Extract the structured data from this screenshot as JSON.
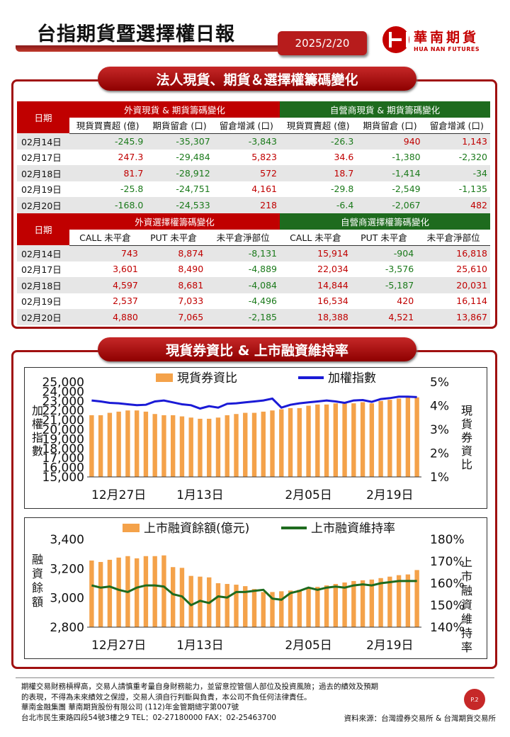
{
  "header": {
    "title": "台指期貨暨選擇權日報",
    "date": "2025/2/20",
    "logo_cn": "華南期貨",
    "logo_en": "HUA NAN FUTURES"
  },
  "section1": {
    "title": "法人現貨、期貨＆選擇權籌碼變化",
    "table1": {
      "date_header": "日期",
      "group_foreign": "外資現貨 & 期貨籌碼變化",
      "group_dealer": "自營商現貨 & 期貨籌碼變化",
      "columns": [
        "現貨買賣超 (億)",
        "期貨留倉 (口)",
        "留倉增減 (口)",
        "現貨買賣超 (億)",
        "期貨留倉 (口)",
        "留倉增減 (口)"
      ],
      "rows": [
        {
          "date": "02月14日",
          "values": [
            "-245.9",
            "-35,307",
            "-3,843",
            "-26.3",
            "940",
            "1,143"
          ]
        },
        {
          "date": "02月17日",
          "values": [
            "247.3",
            "-29,484",
            "5,823",
            "34.6",
            "-1,380",
            "-2,320"
          ]
        },
        {
          "date": "02月18日",
          "values": [
            "81.7",
            "-28,912",
            "572",
            "18.7",
            "-1,414",
            "-34"
          ]
        },
        {
          "date": "02月19日",
          "values": [
            "-25.8",
            "-24,751",
            "4,161",
            "-29.8",
            "-2,549",
            "-1,135"
          ]
        },
        {
          "date": "02月20日",
          "values": [
            "-168.0",
            "-24,533",
            "218",
            "-6.4",
            "-2,067",
            "482"
          ]
        }
      ]
    },
    "table2": {
      "date_header": "日期",
      "group_foreign": "外資選擇權籌碼變化",
      "group_dealer": "自營商選擇權籌碼變化",
      "columns": [
        "CALL 未平倉",
        "PUT  未平倉",
        "未平倉淨部位",
        "CALL 未平倉",
        "PUT  未平倉",
        "未平倉淨部位"
      ],
      "rows": [
        {
          "date": "02月14日",
          "values": [
            "743",
            "8,874",
            "-8,131",
            "15,914",
            "-904",
            "16,818"
          ]
        },
        {
          "date": "02月17日",
          "values": [
            "3,601",
            "8,490",
            "-4,889",
            "22,034",
            "-3,576",
            "25,610"
          ]
        },
        {
          "date": "02月18日",
          "values": [
            "4,597",
            "8,681",
            "-4,084",
            "14,844",
            "-5,187",
            "20,031"
          ]
        },
        {
          "date": "02月19日",
          "values": [
            "2,537",
            "7,033",
            "-4,496",
            "16,534",
            "420",
            "16,114"
          ]
        },
        {
          "date": "02月20日",
          "values": [
            "4,880",
            "7,065",
            "-2,185",
            "18,388",
            "4,521",
            "13,867"
          ]
        }
      ]
    }
  },
  "section2": {
    "title": "現貨券資比 & 上市融資維持率"
  },
  "chart_data": [
    {
      "type": "bar",
      "legend": [
        "現貨券資比",
        "加權指數"
      ],
      "ylabel": "加權指數",
      "y2label": "現貨券資比",
      "ylim": [
        15000,
        25000
      ],
      "y2lim": [
        1,
        5
      ],
      "yticks": [
        "15,000",
        "16,000",
        "17,000",
        "18,000",
        "19,000",
        "20,000",
        "21,000",
        "22,000",
        "23,000",
        "24,000",
        "25,000"
      ],
      "y2ticks": [
        "1%",
        "2%",
        "3%",
        "4%",
        "5%"
      ],
      "xticks": [
        "12月27日",
        "1月13日",
        "2月05日",
        "2月19日"
      ],
      "series": [
        {
          "name": "現貨券資比",
          "type": "bar",
          "color": "#f4a24a",
          "values": [
            3.6,
            3.6,
            3.7,
            3.75,
            3.8,
            3.8,
            3.75,
            3.65,
            3.6,
            3.6,
            3.55,
            3.5,
            3.45,
            3.45,
            3.5,
            3.6,
            3.65,
            3.7,
            3.7,
            3.75,
            3.8,
            3.85,
            3.9,
            3.9,
            4.0,
            4.05,
            4.05,
            4.1,
            4.1,
            4.1,
            4.15,
            4.1,
            4.2,
            4.25,
            4.3,
            4.35,
            4.35
          ]
        },
        {
          "name": "加權指數",
          "type": "line",
          "color": "#1a1ad6",
          "values": [
            23050,
            22950,
            22800,
            22750,
            22650,
            22550,
            22600,
            22950,
            23050,
            22850,
            22650,
            22550,
            22200,
            22450,
            22300,
            22700,
            22750,
            22850,
            22950,
            23050,
            23250,
            22300,
            22600,
            22750,
            22850,
            22950,
            23050,
            22950,
            22800,
            23050,
            23100,
            22900,
            23200,
            23300,
            23450,
            23450,
            23400
          ]
        }
      ]
    },
    {
      "type": "bar",
      "legend": [
        "上市融資餘額(億元)",
        "上市融資維持率"
      ],
      "ylabel": "融資餘額",
      "y2label": "上市融資維持率",
      "ylim": [
        2800,
        3400
      ],
      "y2lim": [
        140,
        180
      ],
      "yticks": [
        "2,800",
        "3,000",
        "3,200",
        "3,400"
      ],
      "y2ticks": [
        "140%",
        "150%",
        "160%",
        "170%",
        "180%"
      ],
      "xticks": [
        "12月27日",
        "1月13日",
        "2月05日",
        "2月19日"
      ],
      "series": [
        {
          "name": "上市融資餘額(億元)",
          "type": "bar",
          "color": "#f4a24a",
          "values": [
            3255,
            3245,
            3260,
            3275,
            3285,
            3270,
            3285,
            3285,
            3290,
            3210,
            3205,
            3150,
            3145,
            3140,
            3100,
            3095,
            3090,
            3080,
            3060,
            3040,
            3040,
            3045,
            3050,
            3055,
            3065,
            3075,
            3085,
            3095,
            3105,
            3115,
            3120,
            3125,
            3135,
            3145,
            3155,
            3160,
            3190
          ]
        },
        {
          "name": "上市融資維持率",
          "type": "line",
          "color": "#1e6b1e",
          "values": [
            159,
            158,
            158.5,
            157,
            156,
            158,
            159,
            159,
            158.5,
            155,
            154,
            150,
            152,
            151,
            154,
            153.5,
            156,
            156,
            156.5,
            157,
            153,
            152.5,
            155.5,
            156.5,
            158,
            157,
            158,
            158.5,
            158,
            159,
            159.5,
            159,
            160,
            160.5,
            161,
            161,
            161
          ]
        }
      ]
    }
  ],
  "footer": {
    "lines": [
      "期權交易財務槓桿高，交易人請慎重考量自身財務能力，並留意控管個人部位及投資風險；過去的績效及預期",
      "的表現，不得為未來績效之保證，交易人須自行判斷與負責，本公司不負任何法律責任。",
      "華南金融集團 華南期貨股份有限公司 (112)年金管期總字第007號",
      "台北市民生東路四段54號3樓之9  TEL：02-27180000  FAX：02-25463700"
    ],
    "source": "資料來源：台灣證券交易所 & 台灣期貨交易所",
    "page": "P.2"
  }
}
